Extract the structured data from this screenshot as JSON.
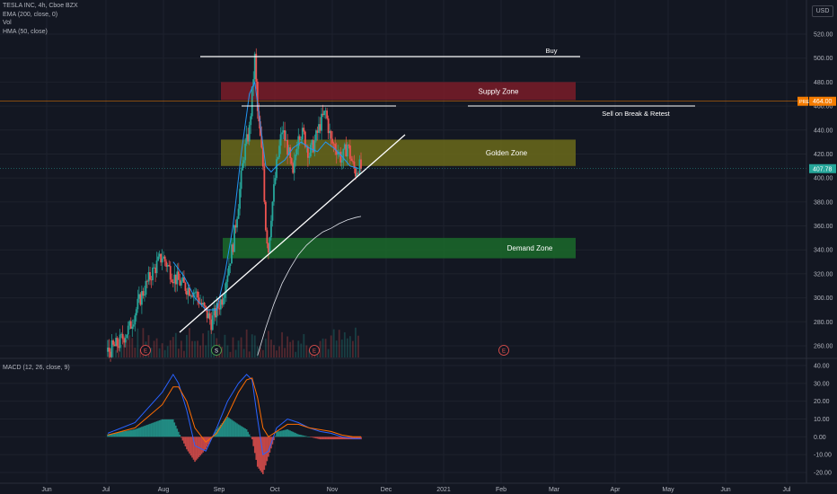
{
  "header": {
    "symbol_line": "TESLA INC, 4h, Cboe BZX",
    "indicators": [
      "EMA (200, close, 0)",
      "Vol",
      "HMA (50, close)"
    ],
    "currency": "USD",
    "macd_label": "MACD (12, 26, close, 9)"
  },
  "colors": {
    "background": "#131722",
    "up": "#26a69a",
    "down": "#ef5350",
    "supply_zone": "#7a1c28",
    "golden_zone": "#6b6a1a",
    "demand_zone": "#1b6a2a",
    "macd_line": "#2962ff",
    "signal_line": "#ff6d00",
    "ema_line": "#2196f3",
    "hma_line": "#e0e3eb"
  },
  "chart_data": {
    "type": "line",
    "title": "TESLA INC, 4h, Cboe BZX",
    "x_labels": [
      "Jun",
      "Jul",
      "Aug",
      "Sep",
      "Oct",
      "Nov",
      "Dec",
      "2021",
      "Feb",
      "Mar",
      "Apr",
      "May",
      "Jun",
      "Jul"
    ],
    "price_axis": {
      "ticks": [
        260,
        280,
        300,
        320,
        340,
        360,
        380,
        400,
        420,
        440,
        460,
        480,
        500,
        520
      ],
      "range": [
        250,
        530
      ],
      "pre_label": "PRE",
      "pre_value": "464.00",
      "last_value": "407.78"
    },
    "macd_axis": {
      "ticks": [
        "40.00",
        "30.00",
        "20.00",
        "10.00",
        "0.00",
        "-10.00",
        "-20.00"
      ],
      "range": [
        -25,
        42
      ]
    },
    "price_series": [
      [
        0,
        255
      ],
      [
        4,
        262
      ],
      [
        8,
        275
      ],
      [
        12,
        300
      ],
      [
        16,
        320
      ],
      [
        20,
        335
      ],
      [
        24,
        318
      ],
      [
        28,
        310
      ],
      [
        32,
        305
      ],
      [
        35,
        292
      ],
      [
        38,
        280
      ],
      [
        42,
        300
      ],
      [
        46,
        345
      ],
      [
        48,
        380
      ],
      [
        50,
        420
      ],
      [
        52,
        440
      ],
      [
        53,
        470
      ],
      [
        54,
        500
      ],
      [
        55,
        455
      ],
      [
        57,
        410
      ],
      [
        58,
        360
      ],
      [
        59,
        340
      ],
      [
        60,
        370
      ],
      [
        62,
        410
      ],
      [
        64,
        440
      ],
      [
        66,
        425
      ],
      [
        68,
        400
      ],
      [
        70,
        440
      ],
      [
        72,
        435
      ],
      [
        74,
        420
      ],
      [
        76,
        430
      ],
      [
        78,
        445
      ],
      [
        80,
        455
      ],
      [
        82,
        430
      ],
      [
        84,
        425
      ],
      [
        86,
        415
      ],
      [
        88,
        428
      ],
      [
        90,
        410
      ],
      [
        91,
        405
      ],
      [
        92,
        410
      ],
      [
        93,
        408
      ]
    ],
    "ema_200": [
      [
        55,
        252
      ],
      [
        58,
        275
      ],
      [
        61,
        295
      ],
      [
        64,
        312
      ],
      [
        67,
        325
      ],
      [
        70,
        336
      ],
      [
        73,
        344
      ],
      [
        76,
        350
      ],
      [
        79,
        355
      ],
      [
        82,
        358
      ],
      [
        85,
        362
      ],
      [
        88,
        365
      ],
      [
        91,
        367
      ],
      [
        93,
        368
      ]
    ],
    "hma_50": [
      [
        24,
        330
      ],
      [
        28,
        318
      ],
      [
        32,
        300
      ],
      [
        36,
        290
      ],
      [
        40,
        290
      ],
      [
        43,
        320
      ],
      [
        46,
        360
      ],
      [
        49,
        420
      ],
      [
        52,
        470
      ],
      [
        54,
        480
      ],
      [
        56,
        445
      ],
      [
        58,
        410
      ],
      [
        60,
        405
      ],
      [
        62,
        410
      ],
      [
        65,
        415
      ],
      [
        68,
        425
      ],
      [
        71,
        430
      ],
      [
        74,
        425
      ],
      [
        77,
        422
      ],
      [
        80,
        430
      ],
      [
        83,
        425
      ],
      [
        86,
        418
      ],
      [
        89,
        410
      ],
      [
        92,
        408
      ]
    ],
    "macd_line": [
      [
        0,
        2
      ],
      [
        10,
        8
      ],
      [
        20,
        25
      ],
      [
        24,
        35
      ],
      [
        26,
        30
      ],
      [
        29,
        15
      ],
      [
        32,
        -5
      ],
      [
        36,
        -8
      ],
      [
        40,
        5
      ],
      [
        44,
        20
      ],
      [
        48,
        30
      ],
      [
        51,
        35
      ],
      [
        53,
        32
      ],
      [
        55,
        10
      ],
      [
        57,
        -10
      ],
      [
        59,
        -8
      ],
      [
        62,
        5
      ],
      [
        66,
        10
      ],
      [
        70,
        8
      ],
      [
        74,
        5
      ],
      [
        78,
        3
      ],
      [
        82,
        2
      ],
      [
        86,
        0
      ],
      [
        90,
        -1
      ],
      [
        93,
        -1
      ]
    ],
    "signal_line": [
      [
        0,
        1
      ],
      [
        10,
        5
      ],
      [
        20,
        18
      ],
      [
        24,
        28
      ],
      [
        26,
        28
      ],
      [
        29,
        20
      ],
      [
        32,
        5
      ],
      [
        36,
        -3
      ],
      [
        40,
        2
      ],
      [
        44,
        12
      ],
      [
        48,
        25
      ],
      [
        51,
        32
      ],
      [
        53,
        33
      ],
      [
        55,
        22
      ],
      [
        57,
        5
      ],
      [
        59,
        0
      ],
      [
        62,
        3
      ],
      [
        66,
        7
      ],
      [
        70,
        7
      ],
      [
        74,
        5
      ],
      [
        78,
        4
      ],
      [
        82,
        3
      ],
      [
        86,
        1
      ],
      [
        90,
        0
      ],
      [
        93,
        0
      ]
    ],
    "zones": [
      {
        "label": "Supply Zone",
        "from": 465,
        "to": 480
      },
      {
        "label": "Golden Zone",
        "from": 410,
        "to": 432
      },
      {
        "label": "Demand Zone",
        "from": 333,
        "to": 350
      }
    ],
    "annotations": [
      "Buy",
      "Sell on Break & Retest"
    ],
    "earnings_markers": [
      "E",
      "S",
      "E",
      "E"
    ]
  }
}
